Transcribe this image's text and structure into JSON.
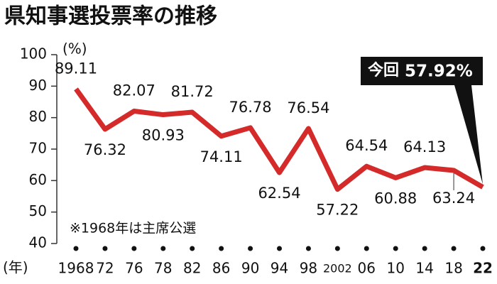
{
  "chart_data": {
    "type": "line",
    "title": "県知事選投票率の推移",
    "y_unit": "(%)",
    "x_unit": "(年)",
    "note": "※1968年は主席公選",
    "callout": "今回",
    "categories": [
      "1968",
      "72",
      "76",
      "78",
      "82",
      "86",
      "90",
      "94",
      "98",
      "2002",
      "06",
      "10",
      "14",
      "18",
      "22"
    ],
    "values": [
      89.11,
      76.32,
      82.07,
      80.93,
      81.72,
      74.11,
      76.78,
      62.54,
      76.54,
      57.22,
      64.54,
      60.88,
      64.13,
      63.24,
      57.92
    ],
    "value_labels": [
      "89.11",
      "76.32",
      "82.07",
      "80.93",
      "81.72",
      "74.11",
      "76.78",
      "62.54",
      "76.54",
      "57.22",
      "64.54",
      "60.88",
      "64.13",
      "63.24",
      "57.92%"
    ],
    "color": "#d42a2a",
    "ylim": [
      40,
      100
    ],
    "yticks": [
      40,
      50,
      60,
      70,
      80,
      90,
      100
    ]
  }
}
